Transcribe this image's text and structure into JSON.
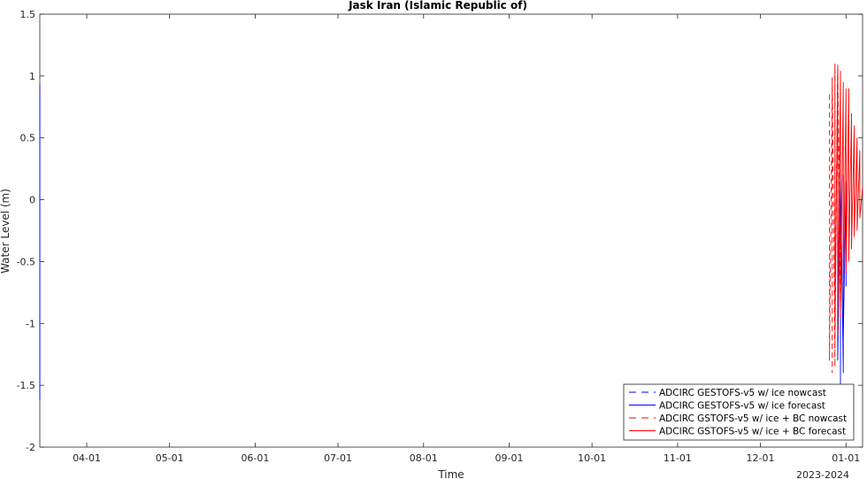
{
  "chart_data": {
    "type": "line",
    "title": "Jask Iran (Islamic Republic of)",
    "xlabel": "Time",
    "ylabel": "Water Level (m)",
    "x_year_label": "2023-2024",
    "xlim": [
      "2023-03-15",
      "2024-01-07"
    ],
    "ylim": [
      -2,
      1.5
    ],
    "x_ticks": [
      "04-01",
      "05-01",
      "06-01",
      "07-01",
      "08-01",
      "09-01",
      "10-01",
      "11-01",
      "12-01",
      "01-01"
    ],
    "x_tick_dates": [
      "2023-04-01",
      "2023-05-01",
      "2023-06-01",
      "2023-07-01",
      "2023-08-01",
      "2023-09-01",
      "2023-10-01",
      "2023-11-01",
      "2023-12-01",
      "2024-01-01"
    ],
    "y_ticks": [
      "1.5",
      "1",
      "0.5",
      "0",
      "-0.5",
      "-1",
      "-1.5",
      "-2"
    ],
    "grid": false,
    "legend_position": "bottom-right",
    "series": [
      {
        "name": "ADCIRC GESTOFS-v5 w/ ice nowcast",
        "color": "#0000ff",
        "style": "dashed",
        "x": [
          "2023-03-15",
          "2023-03-15",
          "2023-03-15",
          "2023-03-15",
          "2023-03-15",
          "2023-03-15",
          "2023-03-15",
          "2023-03-15",
          "2023-03-15",
          "2023-03-15",
          "2023-03-15",
          "2023-03-15",
          "2023-03-15",
          "2023-03-15",
          "2023-03-15",
          "2023-03-15",
          "2023-03-15",
          "2023-03-15",
          "2023-03-15",
          "2023-03-15"
        ],
        "y": [
          0.85,
          -1.55,
          0.9,
          -1.6,
          0.88,
          -1.5,
          0.92,
          -1.45,
          0.8,
          -1.35,
          0.75,
          -1.3,
          0.9,
          -1.55,
          0.85,
          -1.62,
          0.93,
          -1.5,
          0.7,
          -1.2
        ]
      },
      {
        "name": "ADCIRC GESTOFS-v5 w/ ice forecast",
        "color": "#0000ff",
        "style": "solid",
        "x": [
          "2023-12-29",
          "2023-12-29",
          "2023-12-30",
          "2023-12-30",
          "2023-12-30",
          "2023-12-31",
          "2023-12-31",
          "2023-12-31",
          "2024-01-01",
          "2024-01-01",
          "2024-01-01"
        ],
        "y": [
          0.0,
          -1.3,
          0.2,
          -1.5,
          0.25,
          -1.4,
          0.2,
          -1.1,
          0.15,
          -0.7,
          0.05
        ]
      },
      {
        "name": "ADCIRC GSTOFS-v5 w/ ice + BC nowcast",
        "color": "#ff0000",
        "style": "dashed",
        "x": [
          "2023-12-26",
          "2023-12-26",
          "2023-12-27",
          "2023-12-27",
          "2023-12-27",
          "2023-12-28",
          "2023-12-28",
          "2023-12-28",
          "2023-12-29",
          "2023-12-29",
          "2023-12-29",
          "2023-12-30",
          "2023-12-30",
          "2023-12-30"
        ],
        "y": [
          0.85,
          -1.3,
          0.95,
          -1.4,
          1.0,
          -1.35,
          1.05,
          -1.2,
          1.08,
          -1.1,
          1.1,
          -0.9,
          1.05,
          -0.7
        ]
      },
      {
        "name": "ADCIRC GSTOFS-v5 w/ ice + BC forecast",
        "color": "#ff0000",
        "style": "solid",
        "x": [
          "2023-12-28",
          "2023-12-28",
          "2023-12-29",
          "2023-12-29",
          "2023-12-30",
          "2023-12-30",
          "2023-12-31",
          "2023-12-31",
          "2024-01-01",
          "2024-01-01",
          "2024-01-02",
          "2024-01-02",
          "2024-01-03",
          "2024-01-03",
          "2024-01-04",
          "2024-01-04",
          "2024-01-05",
          "2024-01-05",
          "2024-01-06",
          "2024-01-06",
          "2024-01-07"
        ],
        "y": [
          1.1,
          -1.0,
          1.05,
          -1.05,
          1.0,
          -0.95,
          0.95,
          -0.8,
          0.9,
          -0.6,
          0.9,
          -0.5,
          0.7,
          -0.4,
          0.6,
          -0.3,
          0.5,
          -0.25,
          0.4,
          -0.15,
          0.1
        ]
      }
    ]
  }
}
